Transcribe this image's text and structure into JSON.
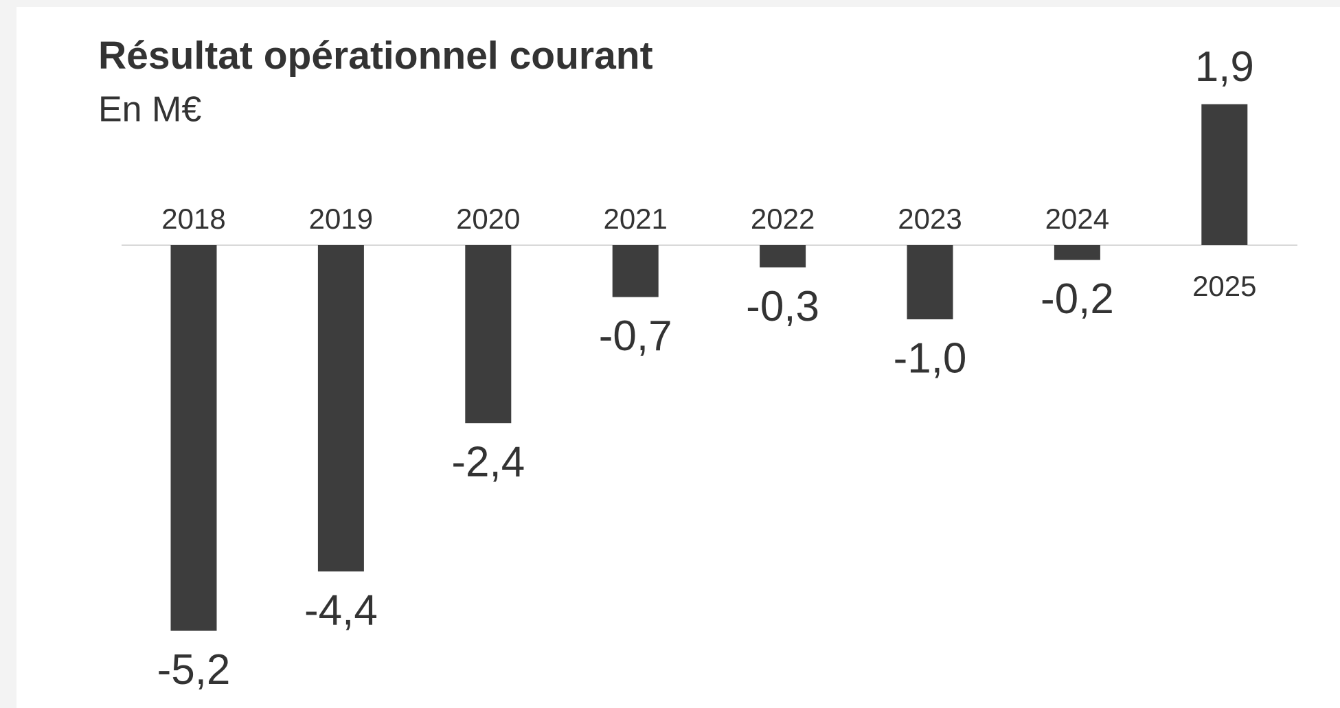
{
  "chart_data": {
    "type": "bar",
    "title": "Résultat opérationnel courant",
    "subtitle": "En M€",
    "categories": [
      "2018",
      "2019",
      "2020",
      "2021",
      "2022",
      "2023",
      "2024",
      "2025"
    ],
    "values": [
      -5.2,
      -4.4,
      -2.4,
      -0.7,
      -0.3,
      -1.0,
      -0.2,
      1.9
    ],
    "value_labels": [
      "-5,2",
      "-4,4",
      "-2,4",
      "-0,7",
      "-0,3",
      "-1,0",
      "-0,2",
      "1,9"
    ],
    "color": "#3d3d3d",
    "grid": false
  }
}
